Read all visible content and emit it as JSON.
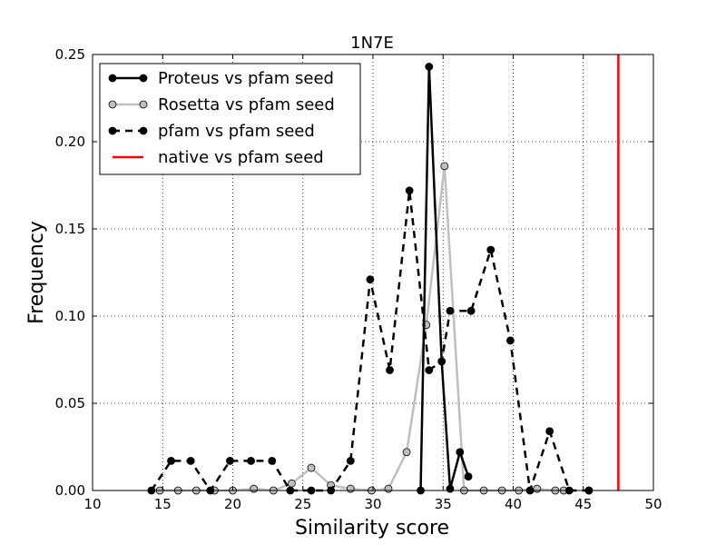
{
  "chart_data": {
    "type": "line",
    "title": "1N7E",
    "xlabel": "Similarity score",
    "ylabel": "Frequency",
    "xlim": [
      10,
      50
    ],
    "ylim": [
      0,
      0.25
    ],
    "xticks": [
      "10",
      "15",
      "20",
      "25",
      "30",
      "35",
      "40",
      "45",
      "50"
    ],
    "yticks": [
      "0.00",
      "0.05",
      "0.10",
      "0.15",
      "0.20",
      "0.25"
    ],
    "grid": true,
    "legend_position": "top-left",
    "series": [
      {
        "name": "Proteus vs pfam seed",
        "color": "#000000",
        "style": "solid",
        "marker": "#000000",
        "x": [
          33.4,
          34.0,
          34.9,
          35.5,
          36.2,
          36.8
        ],
        "y": [
          0.0,
          0.243,
          0.074,
          0.001,
          0.022,
          0.008
        ]
      },
      {
        "name": "Rosetta vs pfam seed",
        "color": "#bfbfbf",
        "style": "solid",
        "marker": "#bfbfbf",
        "x": [
          14.8,
          16.1,
          17.4,
          18.7,
          20.0,
          21.5,
          22.9,
          24.2,
          25.6,
          27.0,
          28.4,
          29.9,
          31.1,
          32.4,
          33.8,
          35.1,
          36.5,
          37.9,
          39.2,
          40.4,
          41.7,
          43.0
        ],
        "y": [
          0.0,
          0.0,
          0.0,
          0.0,
          0.0,
          0.001,
          0.0,
          0.004,
          0.013,
          0.003,
          0.001,
          0.0,
          0.001,
          0.022,
          0.095,
          0.186,
          0.0,
          0.0,
          0.0,
          0.0,
          0.001,
          0.0
        ],
        "points_only": [
          43.6,
          45.4
        ],
        "points_only_y": [
          0.0,
          0.0
        ]
      },
      {
        "name": "pfam vs pfam seed",
        "color": "#000000",
        "style": "dashed",
        "marker": "#000000",
        "x": [
          14.2,
          15.6,
          17.0,
          18.4,
          19.8,
          21.3,
          22.8,
          24.1,
          25.6,
          27.0,
          28.4,
          29.8,
          31.2,
          32.6,
          34.0,
          34.9,
          35.5,
          37.0,
          38.4,
          39.8,
          41.2,
          42.6,
          44.0,
          45.4
        ],
        "y": [
          0.0,
          0.017,
          0.017,
          0.0,
          0.017,
          0.017,
          0.017,
          0.0,
          0.0,
          0.0,
          0.017,
          0.121,
          0.069,
          0.172,
          0.069,
          0.074,
          0.103,
          0.103,
          0.138,
          0.086,
          0.0,
          0.034,
          0.0,
          0.0
        ]
      },
      {
        "name": "native vs pfam seed",
        "color": "#ff0000",
        "style": "vline",
        "x_value": 47.5
      }
    ]
  }
}
